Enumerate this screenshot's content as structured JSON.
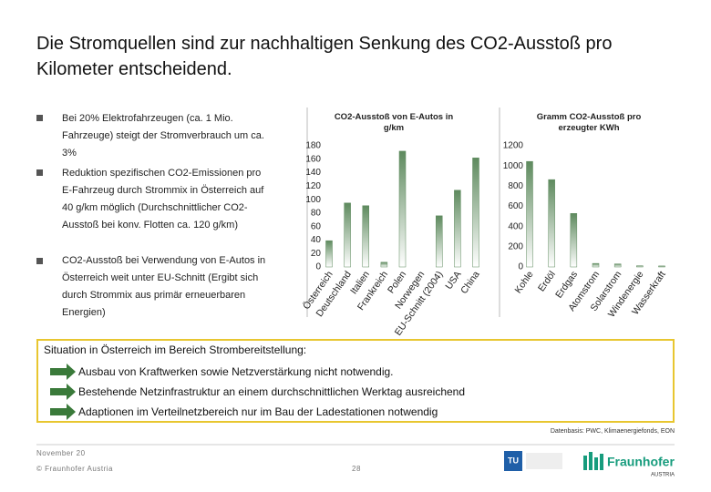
{
  "title": "Die Stromquellen sind zur nachhaltigen Senkung des CO2-Ausstoß pro Kilometer entscheidend.",
  "bullets": [
    "Bei 20% Elektrofahrzeugen (ca. 1 Mio. Fahrzeuge) steigt der Stromverbrauch um ca. 3%",
    "Reduktion spezifischen CO2-Emissionen pro E-Fahrzeug durch Strommix in Österreich auf 40 g/km möglich (Durchschnittlicher CO2-Ausstoß bei konv. Flotten ca. 120 g/km)",
    "CO2-Ausstoß bei Verwendung von E-Autos in Österreich weit unter EU-Schnitt (Ergibt sich durch Strommix aus primär erneuerbaren Energien)"
  ],
  "chart_data": [
    {
      "type": "bar",
      "title": "CO2-Ausstoß von E-Autos in g/km",
      "categories": [
        "Österreich",
        "Deutschland",
        "Italien",
        "Frankreich",
        "Polen",
        "Norwegen",
        "EU-Schnitt (2004)",
        "USA",
        "China"
      ],
      "values": [
        39,
        95,
        91,
        7,
        172,
        0,
        76,
        114,
        162
      ],
      "color": "#5e8a5e",
      "ylim": [
        0,
        180
      ],
      "yticks": [
        0,
        20,
        40,
        60,
        80,
        100,
        120,
        140,
        160,
        180
      ]
    },
    {
      "type": "bar",
      "title": "Gramm CO2-Ausstoß pro erzeugter KWh",
      "categories": [
        "Kohle",
        "Erdöl",
        "Erdgas",
        "Atomstrom",
        "Solarstrom",
        "Windenergie",
        "Wasserkraft"
      ],
      "values": [
        1045,
        865,
        530,
        35,
        30,
        12,
        10
      ],
      "color": "#5e8a5e",
      "ylim": [
        0,
        1200
      ],
      "yticks": [
        0,
        200,
        400,
        600,
        800,
        1000,
        1200
      ]
    }
  ],
  "box": {
    "title": "Situation in Österreich im Bereich Strombereitstellung:",
    "items": [
      "Ausbau von Kraftwerken sowie Netzverstärkung nicht notwendig.",
      "Bestehende Netzinfrastruktur an einem durchschnittlichen Werktag ausreichend",
      "Adaptionen im Verteilnetzbereich nur im Bau der Ladestationen notwendig"
    ]
  },
  "source": "Datenbasis: PWC, Klimaenergiefonds, EON",
  "footer": {
    "date": "November 20",
    "org": "© Fraunhofer Austria",
    "page": "28"
  },
  "logos": {
    "tu": "TU",
    "fraunhofer": "Fraunhofer",
    "austria": "AUSTRIA"
  }
}
